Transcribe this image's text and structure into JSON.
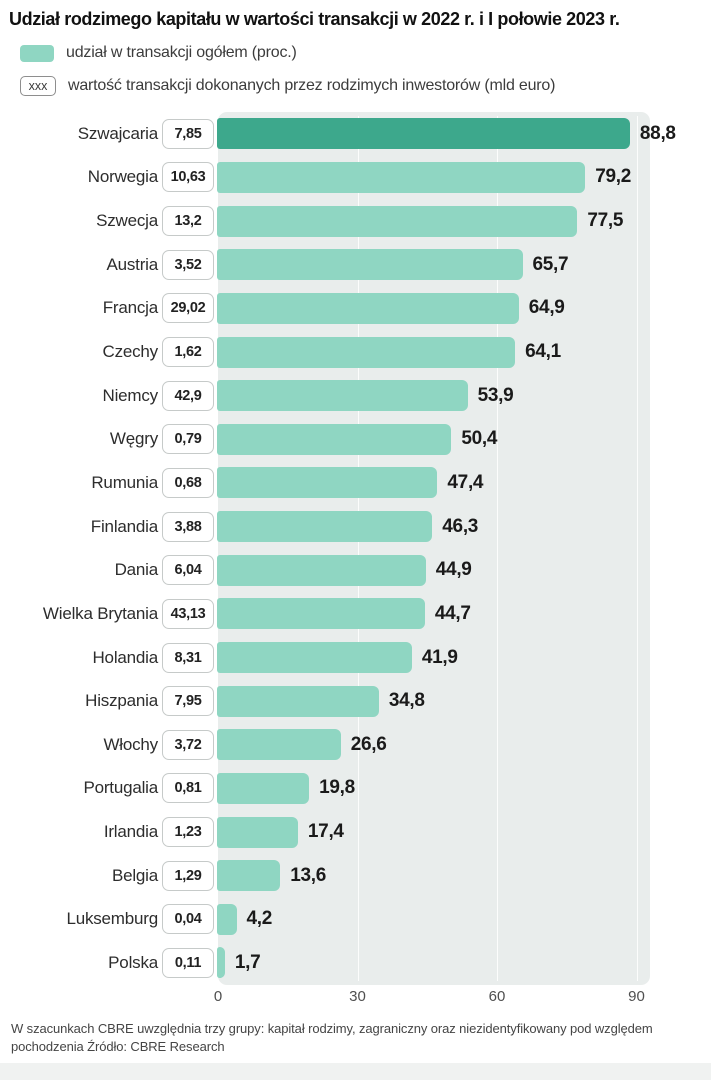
{
  "title": "Udział rodzimego kapitału w wartości transakcji w 2022 r. i I połowie 2023 r.",
  "legend": {
    "share_swatch_color": "#8fd6c2",
    "share_label": "udział w transakcji ogółem (proc.)",
    "value_box_text": "xxx",
    "value_label": "wartość transakcji dokonanych przez rodzimych inwestorów (mld euro)"
  },
  "chart_data": {
    "type": "bar",
    "orientation": "horizontal",
    "title": "Udział rodzimego kapitału w wartości transakcji w 2022 r. i I połowie 2023 r.",
    "categories": [
      "Szwajcaria",
      "Norwegia",
      "Szwecja",
      "Austria",
      "Francja",
      "Czechy",
      "Niemcy",
      "Węgry",
      "Rumunia",
      "Finlandia",
      "Dania",
      "Wielka Brytania",
      "Holandia",
      "Hiszpania",
      "Włochy",
      "Portugalia",
      "Irlandia",
      "Belgia",
      "Luksemburg",
      "Polska"
    ],
    "series": [
      {
        "name": "udział w transakcji ogółem (proc.)",
        "unit": "proc.",
        "values": [
          88.8,
          79.2,
          77.5,
          65.7,
          64.9,
          64.1,
          53.9,
          50.4,
          47.4,
          46.3,
          44.9,
          44.7,
          41.9,
          34.8,
          26.6,
          19.8,
          17.4,
          13.6,
          4.2,
          1.7
        ],
        "labels": [
          "88,8",
          "79,2",
          "77,5",
          "65,7",
          "64,9",
          "64,1",
          "53,9",
          "50,4",
          "47,4",
          "46,3",
          "44,9",
          "44,7",
          "41,9",
          "34,8",
          "26,6",
          "19,8",
          "17,4",
          "13,6",
          "4,2",
          "1,7"
        ]
      },
      {
        "name": "wartość transakcji dokonanych przez rodzimych inwestorów (mld euro)",
        "unit": "mld euro",
        "values": [
          7.85,
          10.63,
          13.2,
          3.52,
          29.02,
          1.62,
          42.9,
          0.79,
          0.68,
          3.88,
          6.04,
          43.13,
          8.31,
          7.95,
          3.72,
          0.81,
          1.23,
          1.29,
          0.04,
          0.11
        ],
        "labels": [
          "7,85",
          "10,63",
          "13,2",
          "3,52",
          "29,02",
          "1,62",
          "42,9",
          "0,79",
          "0,68",
          "3,88",
          "6,04",
          "43,13",
          "8,31",
          "7,95",
          "3,72",
          "0,81",
          "1,23",
          "1,29",
          "0,04",
          "0,11"
        ]
      }
    ],
    "xlim": [
      0,
      90
    ],
    "xticks": [
      0,
      30,
      60,
      90
    ],
    "grid": true,
    "legend_position": "top",
    "highlight_index": 0,
    "colors": {
      "bar": "#8fd6c2",
      "bar_highlight": "#3da88c",
      "plot_bg": "#e9edec"
    }
  },
  "footnote": "W szacunkach CBRE uwzględnia trzy grupy: kapitał rodzimy, zagraniczny oraz niezidentyfikowany pod względem pochodzenia Źródło: CBRE Research"
}
